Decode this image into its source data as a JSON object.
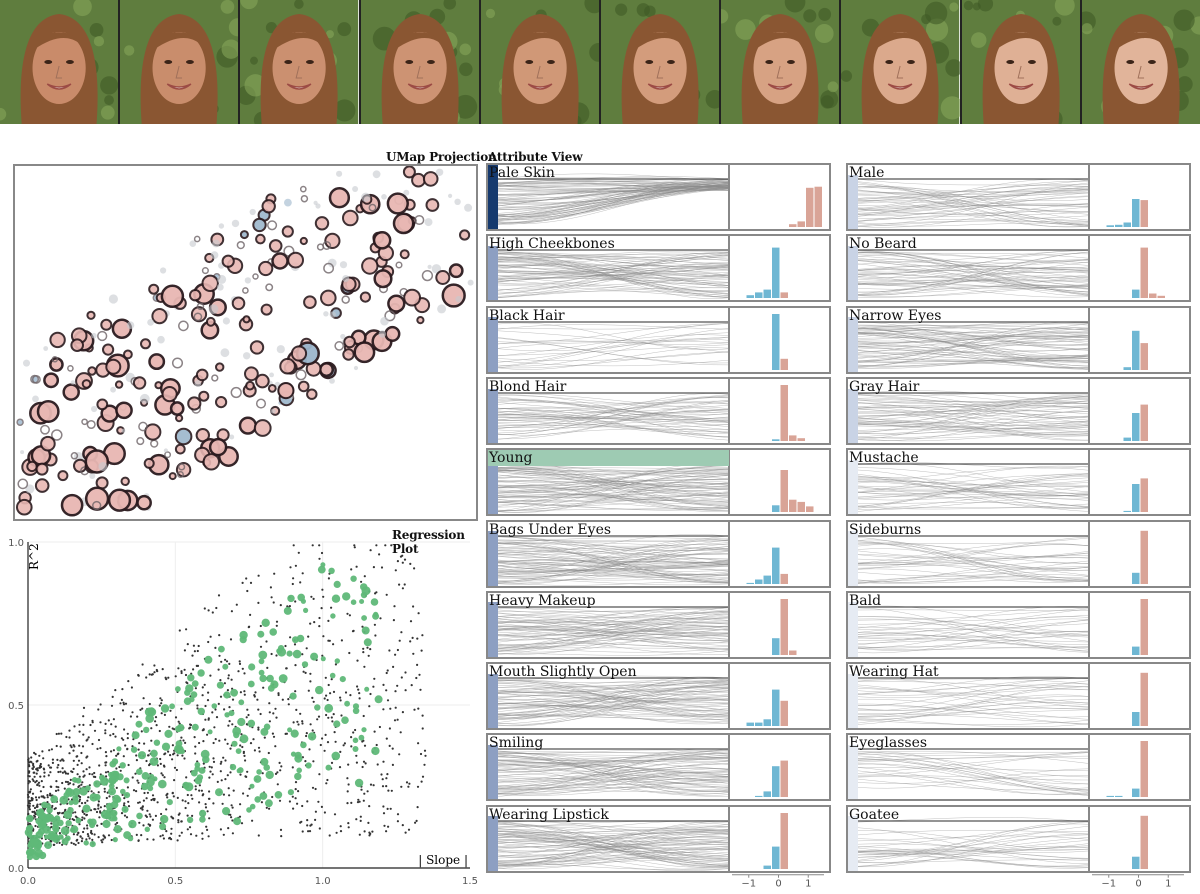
{
  "face_strip": {
    "count": 10,
    "colors": {
      "background": "#5f7d3e",
      "hair": "#8a5632",
      "skin": [
        "#c98b6a",
        "#c98d6c",
        "#cb9070",
        "#cd9373",
        "#d09877",
        "#d39c7c",
        "#d7a283",
        "#dba98c",
        "#dfb095",
        "#e1b49a"
      ]
    }
  },
  "umap": {
    "title": "UMap Projection",
    "colors": {
      "fill": "#e8b7b3",
      "stroke": "#2b1a1e",
      "faint": "#c7c9cf",
      "blue": "#9cb6cc"
    }
  },
  "attribute_view": {
    "title": "Attribute View",
    "colors": {
      "bar_dark": "#163a6e",
      "bar_mid": "#8d9fc2",
      "bar_light": "#c9d3e5",
      "bar_faint": "#e6ebf3",
      "hist_blue": "#6fb7d3",
      "hist_red": "#d9a497",
      "curve": "#8a8a8a",
      "highlight": "#9ecbb3"
    },
    "left": [
      {
        "name": "Pale Skin",
        "bar": 1.0,
        "hist": [
          0,
          0,
          0,
          0,
          0,
          0,
          0.05,
          0.1,
          0.7,
          0.72
        ],
        "density": 0.9
      },
      {
        "name": "High Cheekbones",
        "bar": 0.85,
        "hist": [
          0,
          0.05,
          0.1,
          0.15,
          0.9,
          0.1,
          0,
          0,
          0,
          0
        ],
        "density": 0.8
      },
      {
        "name": "Black Hair",
        "bar": 0.85,
        "hist": [
          0,
          0,
          0,
          0,
          1.0,
          0.2,
          0,
          0,
          0,
          0
        ],
        "density": 0.15
      },
      {
        "name": "Blond Hair",
        "bar": 0.85,
        "hist": [
          0,
          0,
          0,
          0,
          0.03,
          1.0,
          0.1,
          0.05,
          0,
          0
        ],
        "density": 0.5
      },
      {
        "name": "Young",
        "bar": 0.85,
        "hist": [
          0,
          0,
          0,
          0,
          0.12,
          0.75,
          0.22,
          0.18,
          0.1,
          0
        ],
        "density": 0.9,
        "highlight": true
      },
      {
        "name": "Bags Under Eyes",
        "bar": 0.85,
        "hist": [
          0,
          0.02,
          0.08,
          0.15,
          0.65,
          0.18,
          0,
          0,
          0,
          0
        ],
        "density": 0.85
      },
      {
        "name": "Heavy Makeup",
        "bar": 0.85,
        "hist": [
          0,
          0,
          0,
          0,
          0.3,
          1.0,
          0.08,
          0,
          0,
          0
        ],
        "density": 0.7
      },
      {
        "name": "Mouth Slightly Open",
        "bar": 0.85,
        "hist": [
          0,
          0.06,
          0.06,
          0.12,
          0.65,
          0.45,
          0,
          0,
          0,
          0
        ],
        "density": 0.75
      },
      {
        "name": "Smiling",
        "bar": 0.85,
        "hist": [
          0,
          0,
          0.02,
          0.1,
          0.55,
          0.65,
          0,
          0,
          0,
          0
        ],
        "density": 0.8
      },
      {
        "name": "Wearing Lipstick",
        "bar": 0.85,
        "hist": [
          0,
          0,
          0,
          0.06,
          0.4,
          1.0,
          0,
          0,
          0,
          0
        ],
        "density": 0.85
      }
    ],
    "right": [
      {
        "name": "Male",
        "bar": 0.85,
        "hist": [
          0,
          0.03,
          0.04,
          0.08,
          0.5,
          0.48,
          0,
          0,
          0,
          0
        ],
        "density": 0.5
      },
      {
        "name": "No Beard",
        "bar": 0.85,
        "hist": [
          0,
          0,
          0,
          0,
          0.15,
          0.9,
          0.08,
          0.04,
          0,
          0
        ],
        "density": 0.6
      },
      {
        "name": "Narrow Eyes",
        "bar": 0.85,
        "hist": [
          0,
          0,
          0,
          0.05,
          0.7,
          0.48,
          0,
          0,
          0,
          0
        ],
        "density": 0.75
      },
      {
        "name": "Gray Hair",
        "bar": 0.85,
        "hist": [
          0,
          0,
          0,
          0.06,
          0.5,
          0.65,
          0,
          0,
          0,
          0
        ],
        "density": 0.6
      },
      {
        "name": "Mustache",
        "bar": 0.85,
        "hist": [
          0,
          0,
          0,
          0.02,
          0.5,
          0.6,
          0,
          0,
          0,
          0
        ],
        "density": 0.35
      },
      {
        "name": "Sideburns",
        "bar": 0.85,
        "hist": [
          0,
          0,
          0,
          0,
          0.2,
          0.95,
          0,
          0,
          0,
          0
        ],
        "density": 0.3
      },
      {
        "name": "Bald",
        "bar": 0.85,
        "hist": [
          0,
          0,
          0,
          0,
          0.15,
          1.0,
          0,
          0,
          0,
          0
        ],
        "density": 0.25
      },
      {
        "name": "Wearing Hat",
        "bar": 0.85,
        "hist": [
          0,
          0,
          0,
          0,
          0.25,
          0.95,
          0,
          0,
          0,
          0
        ],
        "density": 0.25
      },
      {
        "name": "Eyeglasses",
        "bar": 0.85,
        "hist": [
          0,
          0.02,
          0.02,
          0,
          0.15,
          1.0,
          0,
          0,
          0,
          0
        ],
        "density": 0.2
      },
      {
        "name": "Goatee",
        "bar": 0.85,
        "hist": [
          0,
          0,
          0,
          0,
          0.22,
          0.95,
          0,
          0,
          0,
          0
        ],
        "density": 0.25
      }
    ],
    "ticks": [
      "−1",
      "0",
      "1"
    ]
  },
  "regression": {
    "title": "Regression Plot",
    "ylabel": "R^2",
    "xlabel": "| Slope |",
    "x_ticks": [
      "0.0",
      "0.5",
      "1.0",
      "1.5"
    ],
    "y_ticks": [
      "0.0",
      "0.5",
      "1.0"
    ],
    "colors": {
      "dot": "#333333",
      "green": "#5fb878",
      "grid": "#eeeeee"
    }
  },
  "chart_data": [
    {
      "type": "scatter",
      "title": "Regression Plot",
      "xlabel": "| Slope |",
      "ylabel": "R^2",
      "xlim": [
        0,
        1.5
      ],
      "ylim": [
        0,
        1.0
      ],
      "grid": true
    },
    {
      "type": "scatter",
      "title": "UMap Projection"
    }
  ]
}
